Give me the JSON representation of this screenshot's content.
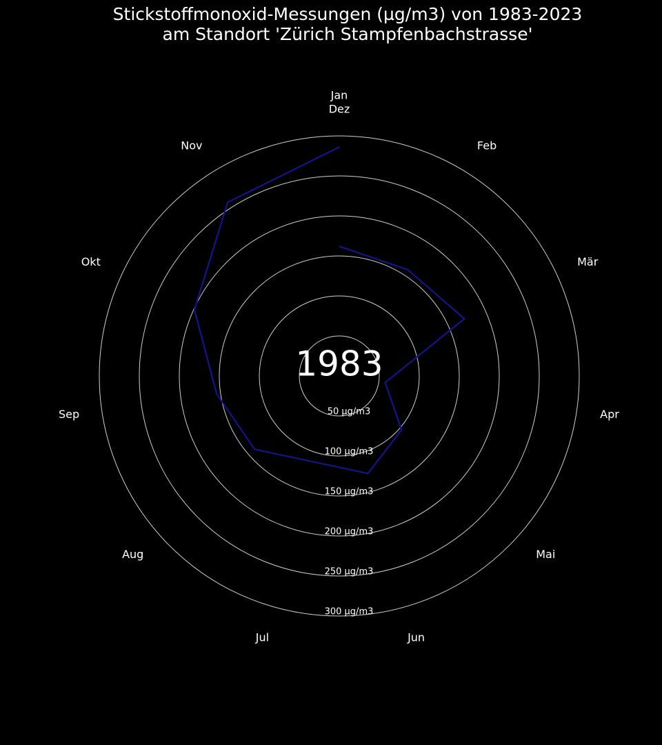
{
  "chart_data": {
    "type": "polar_line",
    "title": "Stickstoffmonoxid-Messungen (µg/m3) von 1983-2023\nam Standort 'Zürich Stampfenbachstrasse'",
    "annotation": "1983",
    "categories": [
      "Jan",
      "Feb",
      "Mär",
      "Apr",
      "Mai",
      "Jun",
      "Jul",
      "Aug",
      "Sep",
      "Okt",
      "Nov",
      "Dez"
    ],
    "series": [
      {
        "name": "1983",
        "color": "#14148c",
        "values": [
          162,
          158,
          172,
          58,
          103,
          127,
          112,
          140,
          155,
          199,
          258,
          286
        ]
      }
    ],
    "rlim": [
      0,
      300
    ],
    "rticks": [
      {
        "value": 50,
        "label": "50 µg/m3"
      },
      {
        "value": 100,
        "label": "100 µg/m3"
      },
      {
        "value": 150,
        "label": "150 µg/m3"
      },
      {
        "value": 200,
        "label": "200 µg/m3"
      },
      {
        "value": 250,
        "label": "250 µg/m3"
      },
      {
        "value": 300,
        "label": "300 µg/m3"
      }
    ],
    "grid": true
  }
}
